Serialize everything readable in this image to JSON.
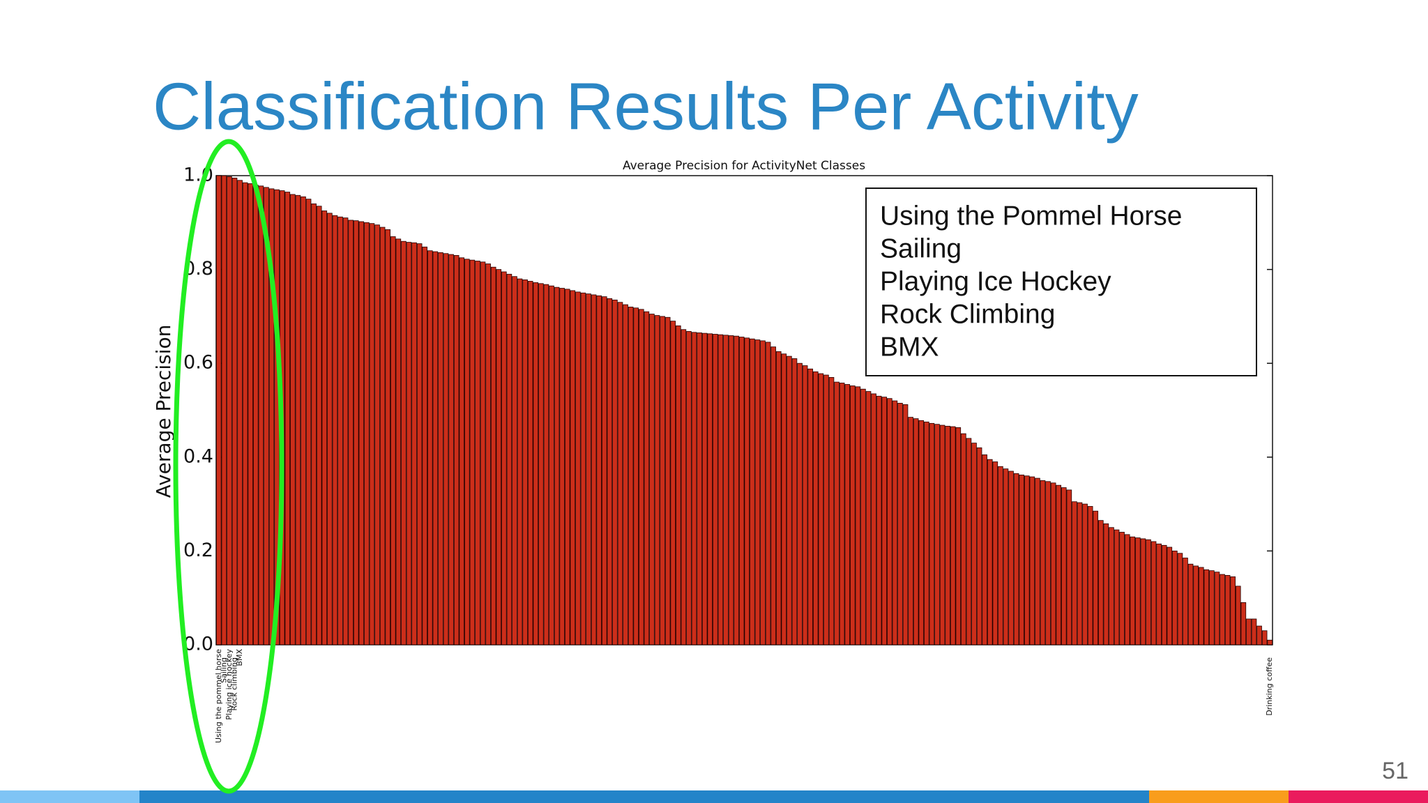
{
  "slide_title": "Classification Results Per Activity",
  "page_number": "51",
  "chart_data": {
    "type": "bar",
    "title": "Average Precision for ActivityNet Classes",
    "y_label": "Average Precision",
    "color": "#cc2e1a",
    "ylim": [
      0,
      1
    ],
    "yticks": [
      {
        "value": 0,
        "label": "0.0"
      },
      0.2,
      0.4,
      0.6,
      0.8,
      {
        "value": 1,
        "label": "1.0"
      }
    ],
    "grid": false,
    "annotations": [
      "Using the Pommel Horse",
      "Sailing",
      "Playing Ice Hockey",
      "Rock Climbing",
      "BMX"
    ],
    "categories": [
      "Using the pommel horse",
      "Sailing",
      "Playing ice hockey",
      "Rock climbing",
      "BMX",
      null,
      null,
      null,
      null,
      null,
      null,
      null,
      null,
      null,
      null,
      null,
      null,
      null,
      null,
      null,
      null,
      null,
      null,
      null,
      null,
      null,
      null,
      null,
      null,
      null,
      null,
      null,
      null,
      null,
      null,
      null,
      null,
      null,
      null,
      null,
      null,
      null,
      null,
      null,
      null,
      null,
      null,
      null,
      null,
      null,
      null,
      null,
      null,
      null,
      null,
      null,
      null,
      null,
      null,
      null,
      null,
      null,
      null,
      null,
      null,
      null,
      null,
      null,
      null,
      null,
      null,
      null,
      null,
      null,
      null,
      null,
      null,
      null,
      null,
      null,
      null,
      null,
      null,
      null,
      null,
      null,
      null,
      null,
      null,
      null,
      null,
      null,
      null,
      null,
      null,
      null,
      null,
      null,
      null,
      null,
      null,
      null,
      null,
      null,
      null,
      null,
      null,
      null,
      null,
      null,
      null,
      null,
      null,
      null,
      null,
      null,
      null,
      null,
      null,
      null,
      null,
      null,
      null,
      null,
      null,
      null,
      null,
      null,
      null,
      null,
      null,
      null,
      null,
      null,
      null,
      null,
      null,
      null,
      null,
      null,
      null,
      null,
      null,
      null,
      null,
      null,
      null,
      null,
      null,
      null,
      null,
      null,
      null,
      null,
      null,
      null,
      null,
      null,
      null,
      null,
      null,
      null,
      null,
      null,
      null,
      null,
      null,
      null,
      null,
      null,
      null,
      null,
      null,
      null,
      null,
      null,
      null,
      null,
      null,
      null,
      null,
      null,
      null,
      null,
      null,
      null,
      null,
      null,
      null,
      null,
      null,
      null,
      null,
      null,
      null,
      null,
      null,
      null,
      null,
      "Drinking coffee"
    ],
    "values": [
      1.0,
      1.0,
      0.998,
      0.995,
      0.99,
      0.985,
      0.983,
      0.98,
      0.978,
      0.975,
      0.972,
      0.97,
      0.968,
      0.965,
      0.96,
      0.958,
      0.955,
      0.95,
      0.94,
      0.935,
      0.925,
      0.92,
      0.915,
      0.912,
      0.91,
      0.905,
      0.904,
      0.902,
      0.9,
      0.898,
      0.895,
      0.89,
      0.885,
      0.87,
      0.865,
      0.86,
      0.858,
      0.857,
      0.855,
      0.848,
      0.84,
      0.838,
      0.836,
      0.834,
      0.832,
      0.83,
      0.825,
      0.822,
      0.82,
      0.818,
      0.816,
      0.812,
      0.805,
      0.8,
      0.795,
      0.79,
      0.785,
      0.78,
      0.778,
      0.775,
      0.772,
      0.77,
      0.768,
      0.765,
      0.762,
      0.76,
      0.758,
      0.755,
      0.752,
      0.75,
      0.748,
      0.746,
      0.744,
      0.742,
      0.738,
      0.735,
      0.73,
      0.725,
      0.72,
      0.718,
      0.715,
      0.71,
      0.705,
      0.702,
      0.7,
      0.698,
      0.69,
      0.68,
      0.672,
      0.668,
      0.666,
      0.665,
      0.664,
      0.663,
      0.662,
      0.661,
      0.66,
      0.659,
      0.658,
      0.656,
      0.654,
      0.652,
      0.65,
      0.648,
      0.645,
      0.635,
      0.625,
      0.62,
      0.615,
      0.61,
      0.6,
      0.595,
      0.588,
      0.582,
      0.578,
      0.575,
      0.57,
      0.56,
      0.558,
      0.555,
      0.552,
      0.55,
      0.545,
      0.54,
      0.535,
      0.53,
      0.528,
      0.525,
      0.52,
      0.515,
      0.512,
      0.485,
      0.482,
      0.478,
      0.475,
      0.472,
      0.47,
      0.468,
      0.466,
      0.465,
      0.463,
      0.45,
      0.44,
      0.43,
      0.42,
      0.405,
      0.395,
      0.39,
      0.38,
      0.375,
      0.37,
      0.365,
      0.362,
      0.36,
      0.358,
      0.355,
      0.35,
      0.348,
      0.345,
      0.34,
      0.335,
      0.33,
      0.305,
      0.303,
      0.3,
      0.295,
      0.285,
      0.265,
      0.258,
      0.25,
      0.245,
      0.24,
      0.235,
      0.23,
      0.228,
      0.226,
      0.224,
      0.22,
      0.215,
      0.212,
      0.208,
      0.2,
      0.195,
      0.185,
      0.172,
      0.168,
      0.165,
      0.16,
      0.158,
      0.155,
      0.15,
      0.148,
      0.145,
      0.125,
      0.09,
      0.055,
      0.055,
      0.04,
      0.03,
      0.01
    ]
  }
}
